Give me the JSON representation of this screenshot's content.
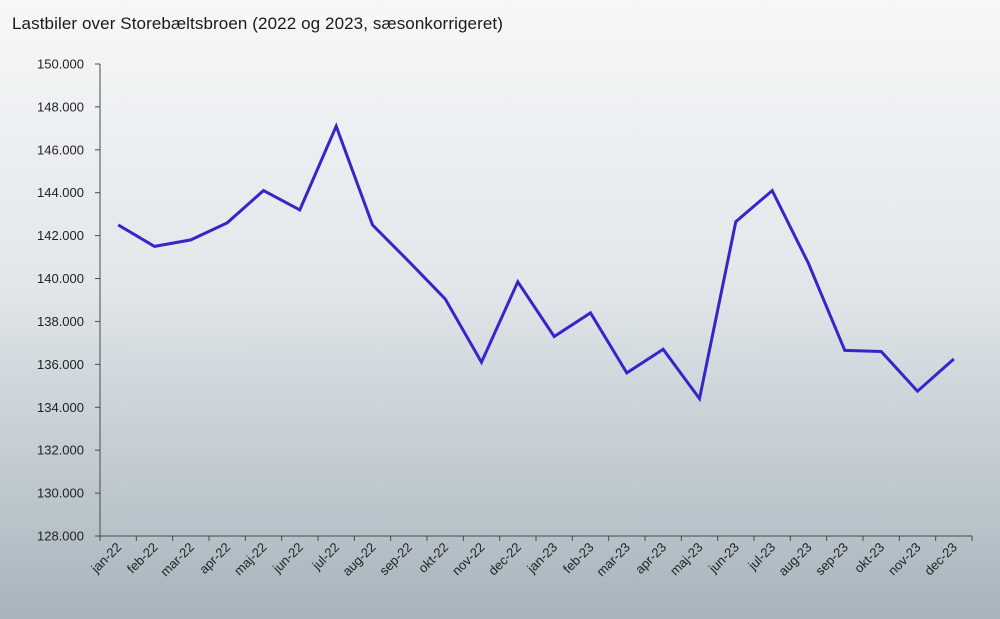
{
  "chart_data": {
    "type": "line",
    "title": "Lastbiler over Storebæltsbroen (2022 og 2023, sæsonkorrigeret)",
    "xlabel": "",
    "ylabel": "",
    "categories": [
      "jan-22",
      "feb-22",
      "mar-22",
      "apr-22",
      "maj-22",
      "jun-22",
      "jul-22",
      "aug-22",
      "sep-22",
      "okt-22",
      "nov-22",
      "dec-22",
      "jan-23",
      "feb-23",
      "mar-23",
      "apr-23",
      "maj-23",
      "jun-23",
      "jul-23",
      "aug-23",
      "sep-23",
      "okt-23",
      "nov-23",
      "dec-23"
    ],
    "series": [
      {
        "name": "",
        "color": "#3a24c9",
        "values": [
          142500,
          141500,
          141800,
          142600,
          144100,
          143200,
          147100,
          142500,
          140800,
          139050,
          136100,
          139850,
          137300,
          138400,
          135600,
          136700,
          134400,
          142650,
          144100,
          140700,
          136650,
          136600,
          134750,
          136250
        ]
      }
    ],
    "ylim": [
      128000,
      150000
    ],
    "yticks": [
      128000,
      130000,
      132000,
      134000,
      136000,
      138000,
      140000,
      142000,
      144000,
      146000,
      148000,
      150000
    ],
    "ytick_labels": [
      "128.000",
      "130.000",
      "132.000",
      "134.000",
      "136.000",
      "138.000",
      "140.000",
      "142.000",
      "144.000",
      "146.000",
      "148.000",
      "150.000"
    ],
    "grid": false,
    "legend": "none"
  }
}
